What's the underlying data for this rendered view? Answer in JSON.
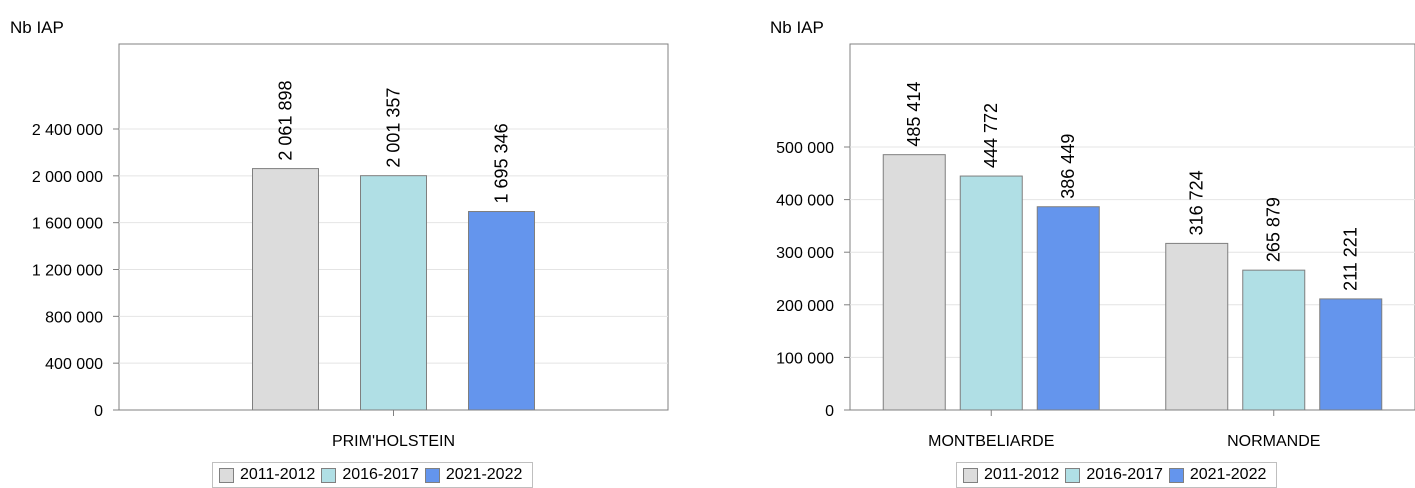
{
  "chart_data": [
    {
      "type": "bar",
      "ylabel": "Nb IAP",
      "categories": [
        "PRIM'HOLSTEIN"
      ],
      "series": [
        {
          "name": "2011-2012",
          "color": "#dcdcdc",
          "values": [
            2061898
          ],
          "labels": [
            "2 061 898"
          ]
        },
        {
          "name": "2016-2017",
          "color": "#b0dfe5",
          "values": [
            2001357
          ],
          "labels": [
            "2 001 357"
          ]
        },
        {
          "name": "2021-2022",
          "color": "#6495ed",
          "values": [
            1695346
          ],
          "labels": [
            "1 695 346"
          ]
        }
      ],
      "ylim": [
        0,
        2400000
      ],
      "yticks": [
        0,
        400000,
        800000,
        1200000,
        1600000,
        2000000,
        2400000
      ],
      "ytick_labels": [
        "0",
        "400 000",
        "800 000",
        "1 200 000",
        "1 600 000",
        "2 000 000",
        "2 400 000"
      ],
      "grid": true,
      "legend": "bottom"
    },
    {
      "type": "bar",
      "ylabel": "Nb IAP",
      "categories": [
        "MONTBELIARDE",
        "NORMANDE"
      ],
      "series": [
        {
          "name": "2011-2012",
          "color": "#dcdcdc",
          "values": [
            485414,
            316724
          ],
          "labels": [
            "485 414",
            "316 724"
          ]
        },
        {
          "name": "2016-2017",
          "color": "#b0dfe5",
          "values": [
            444772,
            265879
          ],
          "labels": [
            "444 772",
            "265 879"
          ]
        },
        {
          "name": "2021-2022",
          "color": "#6495ed",
          "values": [
            386449,
            211221
          ],
          "labels": [
            "386 449",
            "211 221"
          ]
        }
      ],
      "ylim": [
        0,
        500000
      ],
      "yticks": [
        0,
        100000,
        200000,
        300000,
        400000,
        500000
      ],
      "ytick_labels": [
        "0",
        "100 000",
        "200 000",
        "300 000",
        "400 000",
        "500 000"
      ],
      "grid": true,
      "legend": "bottom"
    }
  ]
}
